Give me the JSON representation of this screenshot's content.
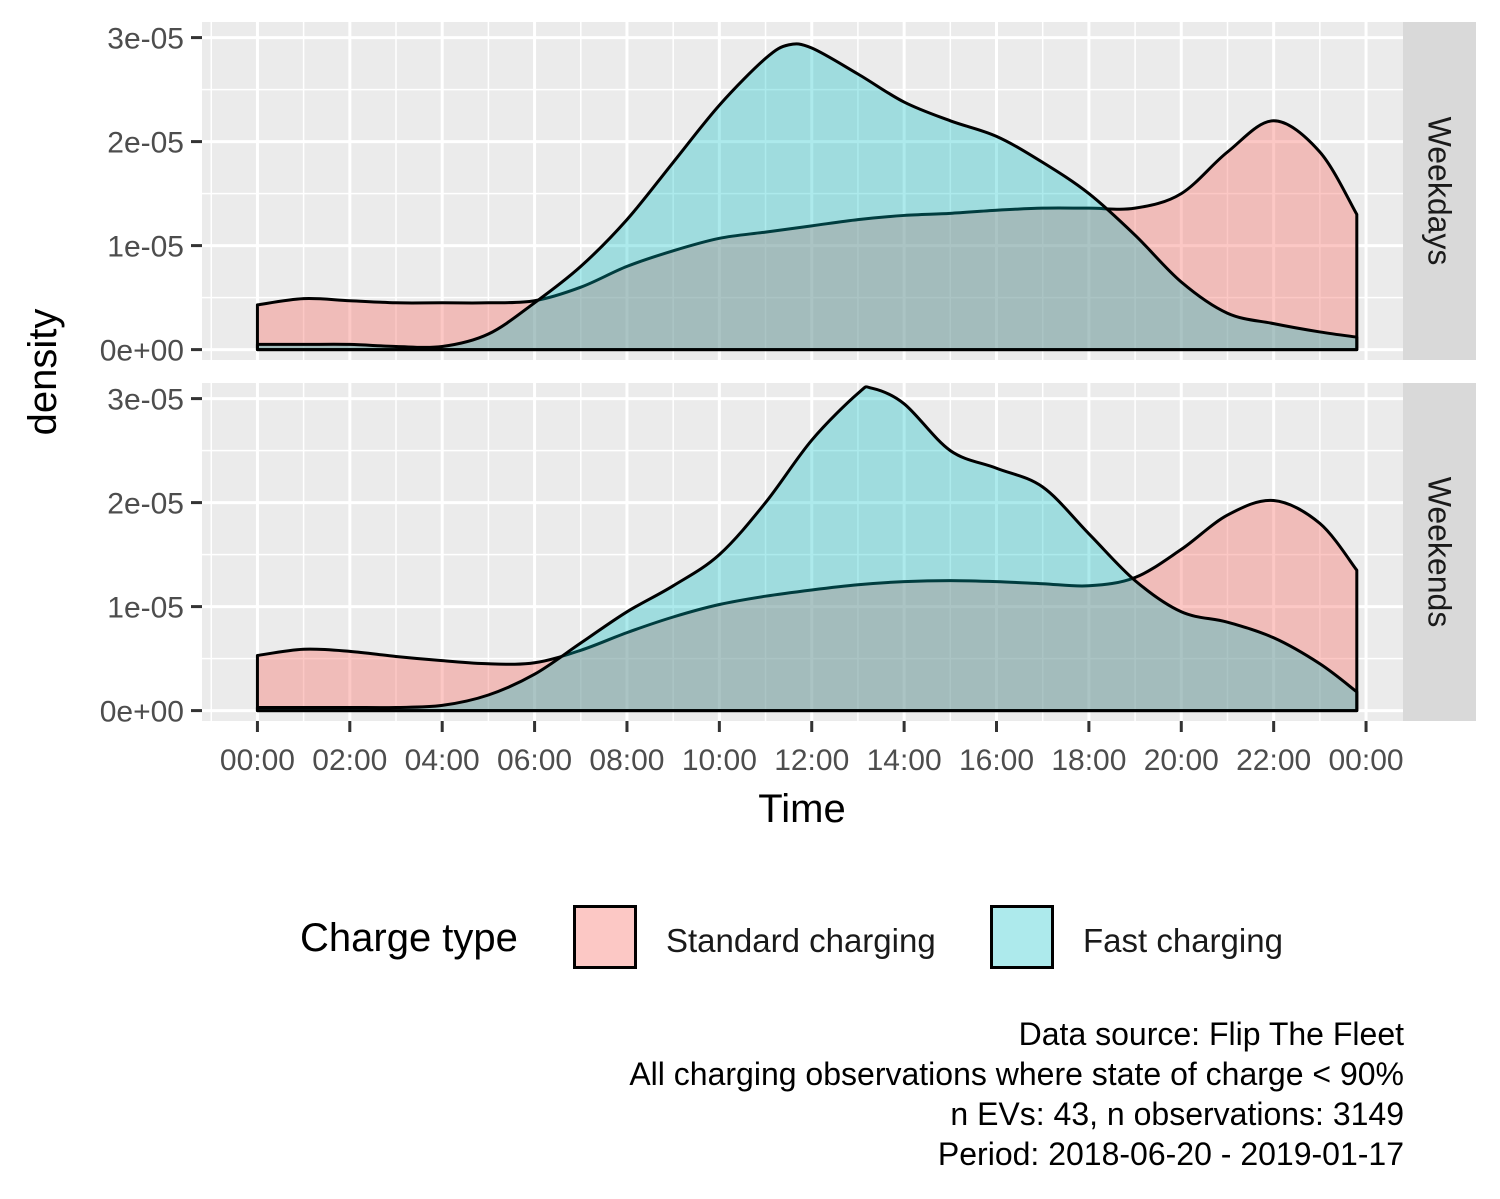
{
  "chart_data": {
    "type": "area",
    "xlabel": "Time",
    "ylabel": "density",
    "x_ticks": [
      "00:00",
      "02:00",
      "04:00",
      "06:00",
      "08:00",
      "10:00",
      "12:00",
      "14:00",
      "16:00",
      "18:00",
      "20:00",
      "22:00",
      "00:00"
    ],
    "xlim_hours": [
      -1.2,
      24.8
    ],
    "y_ticks": [
      "0e+00",
      "1e-05",
      "2e-05",
      "3e-05"
    ],
    "ylim": [
      -1e-06,
      3.15e-05
    ],
    "grid": true,
    "legend": {
      "title": "Charge type",
      "position": "bottom",
      "entries": [
        "Standard charging",
        "Fast charging"
      ]
    },
    "series_colors": {
      "Standard charging": "#F8766D",
      "Fast charging": "#00BFC4"
    },
    "panels": [
      {
        "facet_label": "Weekdays",
        "series": [
          {
            "name": "Standard charging",
            "x_hours": [
              0,
              1,
              2,
              3,
              4,
              5,
              6,
              7,
              8,
              9,
              10,
              11,
              12,
              13,
              14,
              15,
              16,
              17,
              18,
              19,
              20,
              21,
              22,
              23,
              23.8
            ],
            "values": [
              4.3e-06,
              4.9e-06,
              4.7e-06,
              4.5e-06,
              4.5e-06,
              4.5e-06,
              4.7e-06,
              6e-06,
              8e-06,
              9.5e-06,
              1.07e-05,
              1.13e-05,
              1.19e-05,
              1.25e-05,
              1.29e-05,
              1.31e-05,
              1.34e-05,
              1.36e-05,
              1.36e-05,
              1.36e-05,
              1.5e-05,
              1.9e-05,
              2.2e-05,
              1.9e-05,
              1.3e-05
            ]
          },
          {
            "name": "Fast charging",
            "x_hours": [
              0,
              1,
              2,
              3,
              4,
              5,
              6,
              7,
              8,
              9,
              10,
              11,
              11.5,
              12,
              13,
              14,
              15,
              16,
              17,
              18,
              19,
              20,
              21,
              22,
              23,
              23.8
            ],
            "values": [
              5e-07,
              5e-07,
              5e-07,
              3e-07,
              3e-07,
              1.5e-06,
              4.5e-06,
              8e-06,
              1.25e-05,
              1.8e-05,
              2.35e-05,
              2.8e-05,
              2.93e-05,
              2.9e-05,
              2.65e-05,
              2.38e-05,
              2.2e-05,
              2.05e-05,
              1.8e-05,
              1.5e-05,
              1.1e-05,
              6.5e-06,
              3.5e-06,
              2.5e-06,
              1.7e-06,
              1.2e-06
            ]
          }
        ]
      },
      {
        "facet_label": "Weekends",
        "series": [
          {
            "name": "Standard charging",
            "x_hours": [
              0,
              1,
              2,
              3,
              4,
              5,
              6,
              7,
              8,
              9,
              10,
              11,
              12,
              13,
              14,
              15,
              16,
              17,
              18,
              19,
              20,
              21,
              22,
              23,
              23.8
            ],
            "values": [
              5.3e-06,
              5.9e-06,
              5.7e-06,
              5.2e-06,
              4.8e-06,
              4.5e-06,
              4.6e-06,
              5.8e-06,
              7.5e-06,
              9e-06,
              1.02e-05,
              1.1e-05,
              1.16e-05,
              1.21e-05,
              1.24e-05,
              1.25e-05,
              1.24e-05,
              1.22e-05,
              1.2e-05,
              1.28e-05,
              1.55e-05,
              1.88e-05,
              2.02e-05,
              1.8e-05,
              1.35e-05
            ]
          },
          {
            "name": "Fast charging",
            "x_hours": [
              0,
              1,
              2,
              3,
              4,
              5,
              6,
              7,
              8,
              9,
              10,
              11,
              12,
              13,
              13.3,
              14,
              15,
              16,
              17,
              18,
              19,
              20,
              21,
              22,
              23,
              23.8
            ],
            "values": [
              3e-07,
              3e-07,
              3e-07,
              3e-07,
              5e-07,
              1.5e-06,
              3.5e-06,
              6.5e-06,
              9.5e-06,
              1.2e-05,
              1.5e-05,
              2e-05,
              2.6e-05,
              3.05e-05,
              3.1e-05,
              2.95e-05,
              2.5e-05,
              2.33e-05,
              2.15e-05,
              1.7e-05,
              1.25e-05,
              9.5e-06,
              8.5e-06,
              7e-06,
              4.5e-06,
              1.8e-06
            ]
          }
        ]
      }
    ],
    "caption": [
      "Data source: Flip The Fleet",
      "All charging observations where state of charge < 90%",
      "n EVs: 43, n observations: 3149",
      "Period: 2018-06-20 - 2019-01-17"
    ]
  }
}
